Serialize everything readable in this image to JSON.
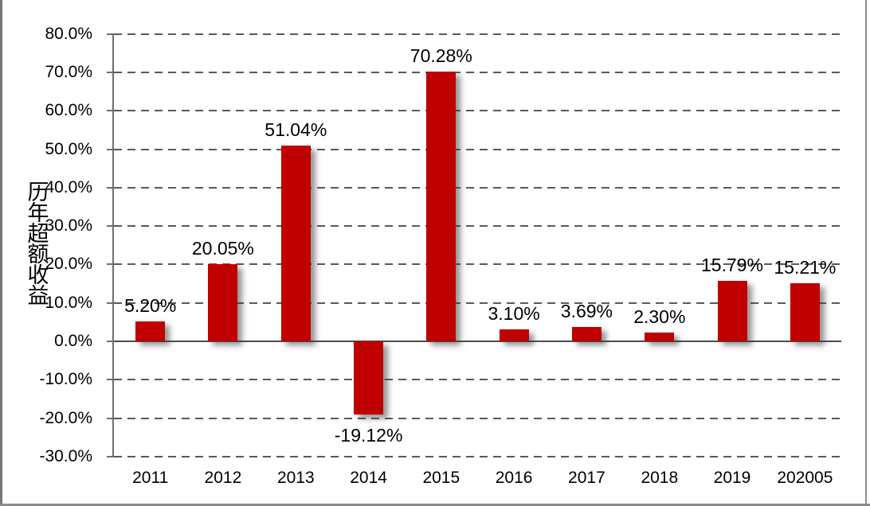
{
  "chart_data": {
    "type": "bar",
    "title": "",
    "categories": [
      "2011",
      "2012",
      "2013",
      "2014",
      "2015",
      "2016",
      "2017",
      "2018",
      "2019",
      "202005"
    ],
    "values": [
      5.2,
      20.05,
      51.04,
      -19.12,
      70.28,
      3.1,
      3.69,
      2.3,
      15.79,
      15.21
    ],
    "value_labels": [
      "5.20%",
      "20.05%",
      "51.04%",
      "-19.12%",
      "70.28%",
      "3.10%",
      "3.69%",
      "2.30%",
      "15.79%",
      "15.21%"
    ],
    "xlabel": "",
    "ylabel": "历年超额收益",
    "ylim": [
      -30,
      80
    ],
    "ytick_step": 10,
    "ytick_labels": [
      "80.0%",
      "70.0%",
      "60.0%",
      "50.0%",
      "40.0%",
      "30.0%",
      "20.0%",
      "10.0%",
      "0.0%",
      "-10.0%",
      "-20.0%",
      "-30.0%"
    ],
    "legend": "none",
    "grid": "dashed-horizontal",
    "bar_color": "#c00000",
    "gridline_color": "#595959",
    "axis_color": "#6e6e6e",
    "zero_line_color": "#4d4d4d",
    "shadow": true
  }
}
